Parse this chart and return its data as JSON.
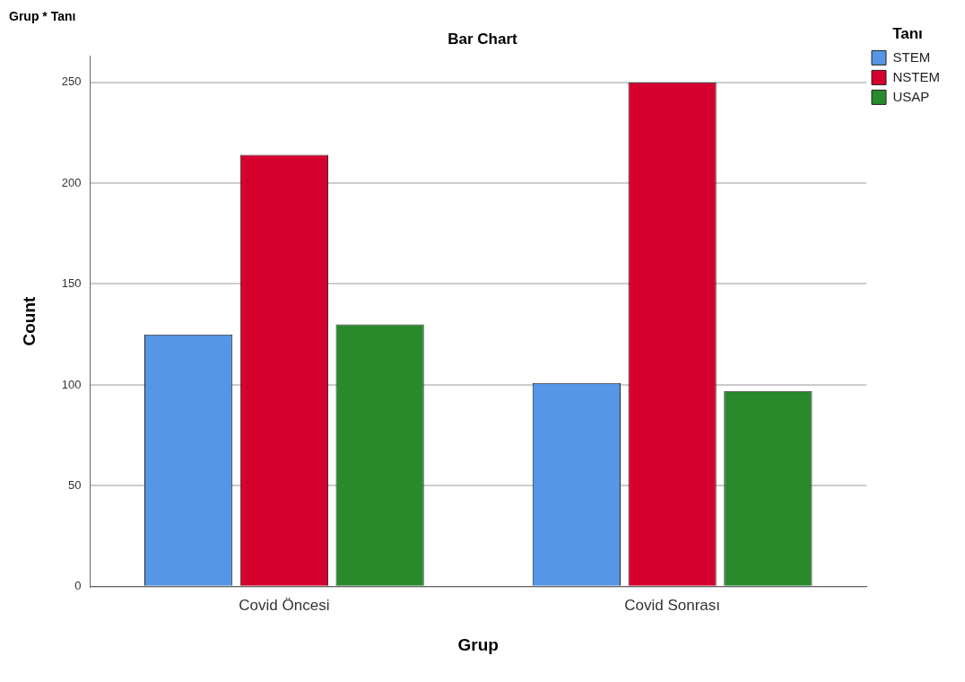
{
  "chart_data": {
    "type": "bar",
    "title": "Bar Chart",
    "annotations": [
      "Grup * Tanı"
    ],
    "xlabel": "Grup",
    "ylabel": "Count",
    "legend_title": "Tanı",
    "categories": [
      "Covid Öncesi",
      "Covid Sonrası"
    ],
    "series": [
      {
        "name": "STEM",
        "color": "#5596e6",
        "values": [
          125,
          101
        ]
      },
      {
        "name": "NSTEM",
        "color": "#d6002f",
        "values": [
          214,
          250
        ]
      },
      {
        "name": "USAP",
        "color": "#298a2b",
        "values": [
          130,
          97
        ]
      }
    ],
    "ylim": [
      0,
      263
    ],
    "yticks": [
      0,
      50,
      100,
      150,
      200,
      250
    ],
    "grid": "y",
    "legend": "top right"
  }
}
